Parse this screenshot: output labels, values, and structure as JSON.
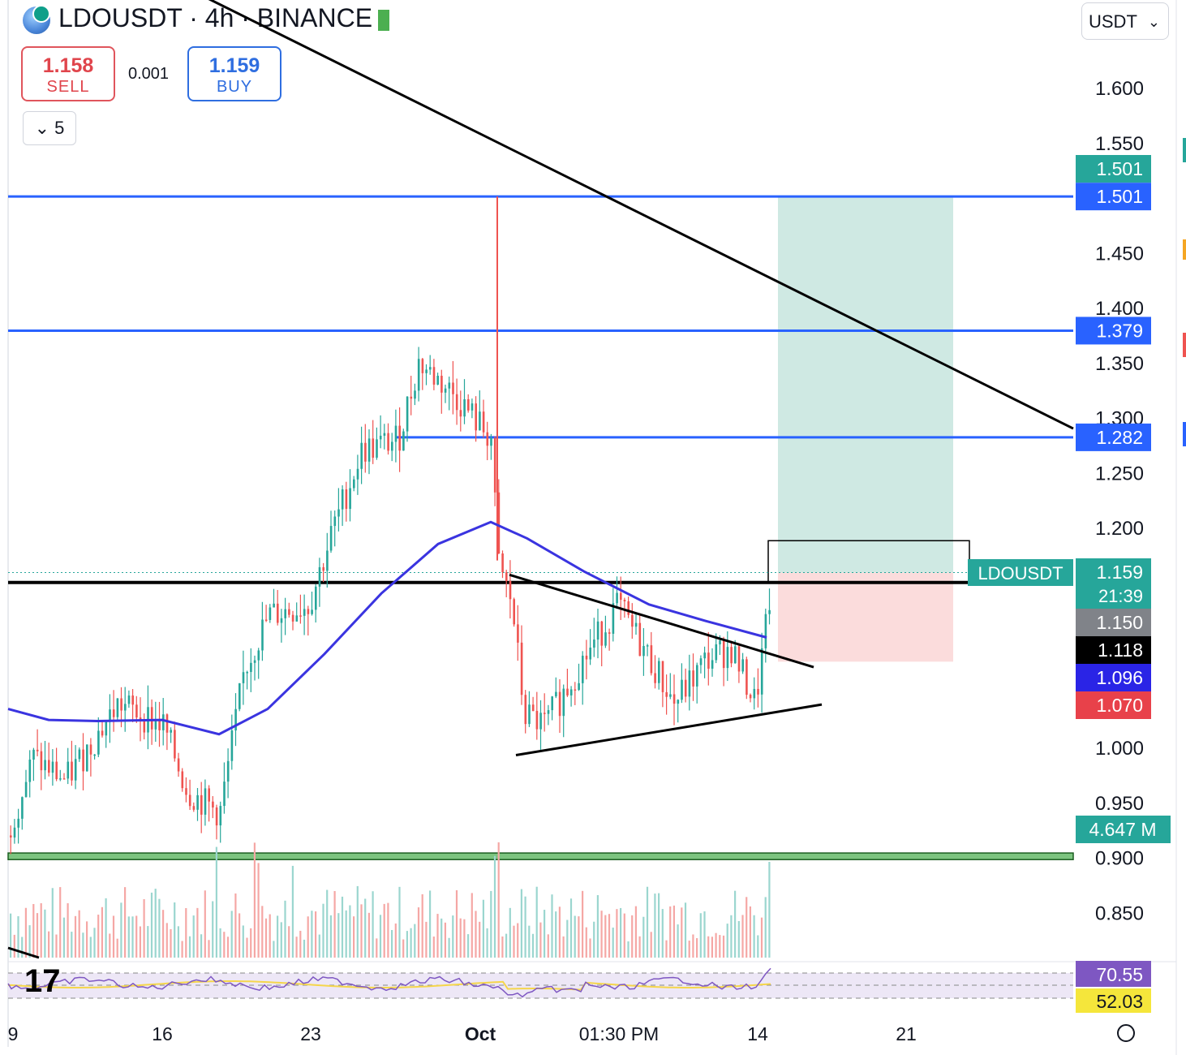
{
  "header": {
    "title": "LDOUSDT · 4h · BINANCE",
    "sell_price": "1.158",
    "sell_label": "SELL",
    "buy_price": "1.159",
    "buy_label": "BUY",
    "spread": "0.001",
    "indicators_count": "5",
    "currency": "USDT"
  },
  "colors": {
    "up": "#26a69a",
    "down": "#ef5350",
    "horizontal_level": "#2962ff",
    "ma": "#3a34e0",
    "trendline": "#000000",
    "profit_zone": "#cfe9e3",
    "loss_zone": "#fbdcdc",
    "support_band": "#7cc47f",
    "rsi_line": "#7e57c2",
    "rsi_ma": "#f5d64b"
  },
  "chart_data": {
    "type": "candlestick",
    "symbol": "LDOUSDT",
    "timeframe": "4h",
    "exchange": "BINANCE",
    "x_tick_labels": [
      "9",
      "16",
      "23",
      "Oct",
      "01:30 PM",
      "14",
      "21"
    ],
    "y_tick_labels": [
      "1.600",
      "1.550",
      "1.450",
      "1.400",
      "1.350",
      "1.300",
      "1.250",
      "1.200",
      "1.000",
      "0.950",
      "0.900",
      "0.850"
    ],
    "ylim": [
      0.82,
      1.64
    ],
    "price_labels": [
      {
        "text": "1.501",
        "value": 1.501,
        "color": "#26a69a",
        "kind": "tp"
      },
      {
        "text": "1.501",
        "value": 1.501,
        "color": "#2962ff",
        "kind": "hline"
      },
      {
        "text": "1.379",
        "value": 1.379,
        "color": "#2962ff",
        "kind": "hline"
      },
      {
        "text": "1.282",
        "value": 1.282,
        "color": "#2962ff",
        "kind": "hline"
      },
      {
        "text": "1.159",
        "value": 1.159,
        "color": "#26a69a",
        "kind": "last"
      },
      {
        "text": "1.150",
        "value": 1.15,
        "color": "#808389",
        "kind": "level"
      },
      {
        "text": "1.118",
        "value": 1.118,
        "color": "#000000",
        "kind": "level"
      },
      {
        "text": "1.096",
        "value": 1.096,
        "color": "#2a24e6",
        "kind": "ma"
      },
      {
        "text": "1.070",
        "value": 1.07,
        "color": "#e8414a",
        "kind": "sl"
      }
    ],
    "last_price_symbol": "LDOUSDT",
    "countdown": "21:39",
    "volume_label": "4.647 M",
    "rsi": {
      "value_label": "70.55",
      "ma_label": "52.03"
    },
    "horizontal_levels": [
      1.501,
      1.379,
      1.282,
      1.15
    ],
    "support_band": [
      0.898,
      0.904
    ],
    "position": {
      "entry": 1.159,
      "target": 1.501,
      "stop": 1.07
    },
    "candles_ohlc_sample": [
      {
        "o": 0.93,
        "h": 0.96,
        "l": 0.91,
        "c": 0.95
      },
      {
        "o": 1.04,
        "h": 1.07,
        "l": 1.02,
        "c": 1.05
      },
      {
        "o": 1.24,
        "h": 1.29,
        "l": 1.22,
        "c": 1.27
      },
      {
        "o": 1.34,
        "h": 1.4,
        "l": 1.31,
        "c": 1.37
      },
      {
        "o": 1.31,
        "h": 1.5,
        "l": 1.14,
        "c": 1.16
      },
      {
        "o": 1.05,
        "h": 1.08,
        "l": 1.01,
        "c": 1.03
      },
      {
        "o": 1.09,
        "h": 1.14,
        "l": 1.07,
        "c": 1.12
      },
      {
        "o": 1.04,
        "h": 1.11,
        "l": 1.02,
        "c": 1.08
      },
      {
        "o": 1.13,
        "h": 1.17,
        "l": 1.12,
        "c": 1.16
      }
    ]
  }
}
